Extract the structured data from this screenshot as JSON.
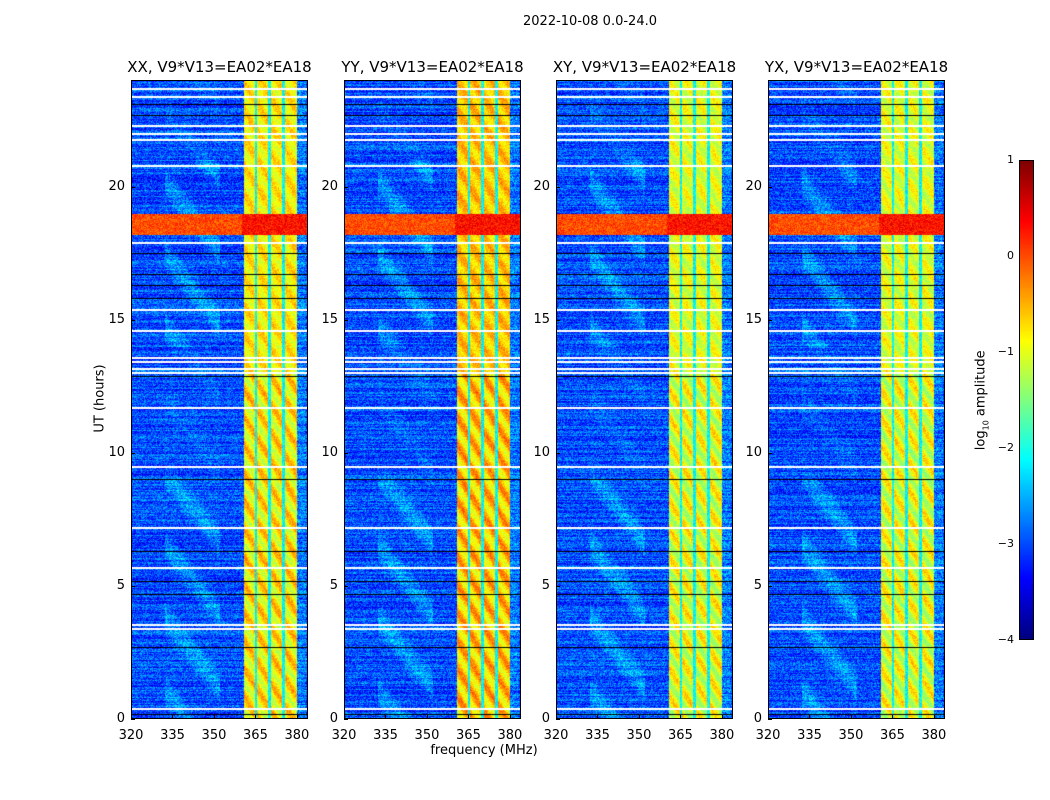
{
  "chart_data": {
    "type": "heatmap",
    "title": "2022-10-08 0.0-24.0",
    "xlabel": "frequency (MHz)",
    "ylabel": "UT (hours)",
    "xlim": [
      320,
      384
    ],
    "ylim": [
      0,
      24
    ],
    "xticks": [
      "320",
      "335",
      "350",
      "365",
      "380"
    ],
    "yticks": [
      "0",
      "5",
      "10",
      "15",
      "20"
    ],
    "panels": [
      {
        "title": "XX, V9*V13=EA02*EA18",
        "rfi_level": -0.8,
        "seed": 1
      },
      {
        "title": "YY, V9*V13=EA02*EA18",
        "rfi_level": -0.6,
        "seed": 2
      },
      {
        "title": "XY, V9*V13=EA02*EA18",
        "rfi_level": -1.0,
        "seed": 3
      },
      {
        "title": "YX, V9*V13=EA02*EA18",
        "rfi_level": -1.0,
        "seed": 4
      }
    ],
    "features": {
      "background_level": -3.0,
      "rfi_band_mhz": [
        360.5,
        380
      ],
      "rfi_channel_gaps_mhz": [
        365,
        370,
        375
      ],
      "strong_rfi_ut_hours": [
        18.2,
        19.0
      ],
      "strong_rfi_level": 0.3,
      "flagged_ut_hours": [
        0.4,
        3.4,
        3.55,
        5.7,
        7.2,
        9.5,
        11.7,
        13.05,
        13.2,
        13.45,
        13.6,
        14.6,
        15.4,
        17.9,
        20.8,
        21.8,
        22.0,
        22.3,
        23.4,
        23.7
      ],
      "low_ut_hours": [
        0.2,
        2.7,
        4.7,
        5.2,
        6.3,
        9.0,
        12.9,
        15.8,
        16.3,
        16.7,
        17.5,
        22.7,
        23.1
      ]
    },
    "colorbar": {
      "label": "log10 amplitude",
      "label_main": "log",
      "label_sub": "10",
      "label_rest": " amplitude",
      "colormap": "jet",
      "range": [
        -4,
        1
      ],
      "ticks": [
        "1",
        "0",
        "−1",
        "−2",
        "−3",
        "−4"
      ]
    }
  }
}
